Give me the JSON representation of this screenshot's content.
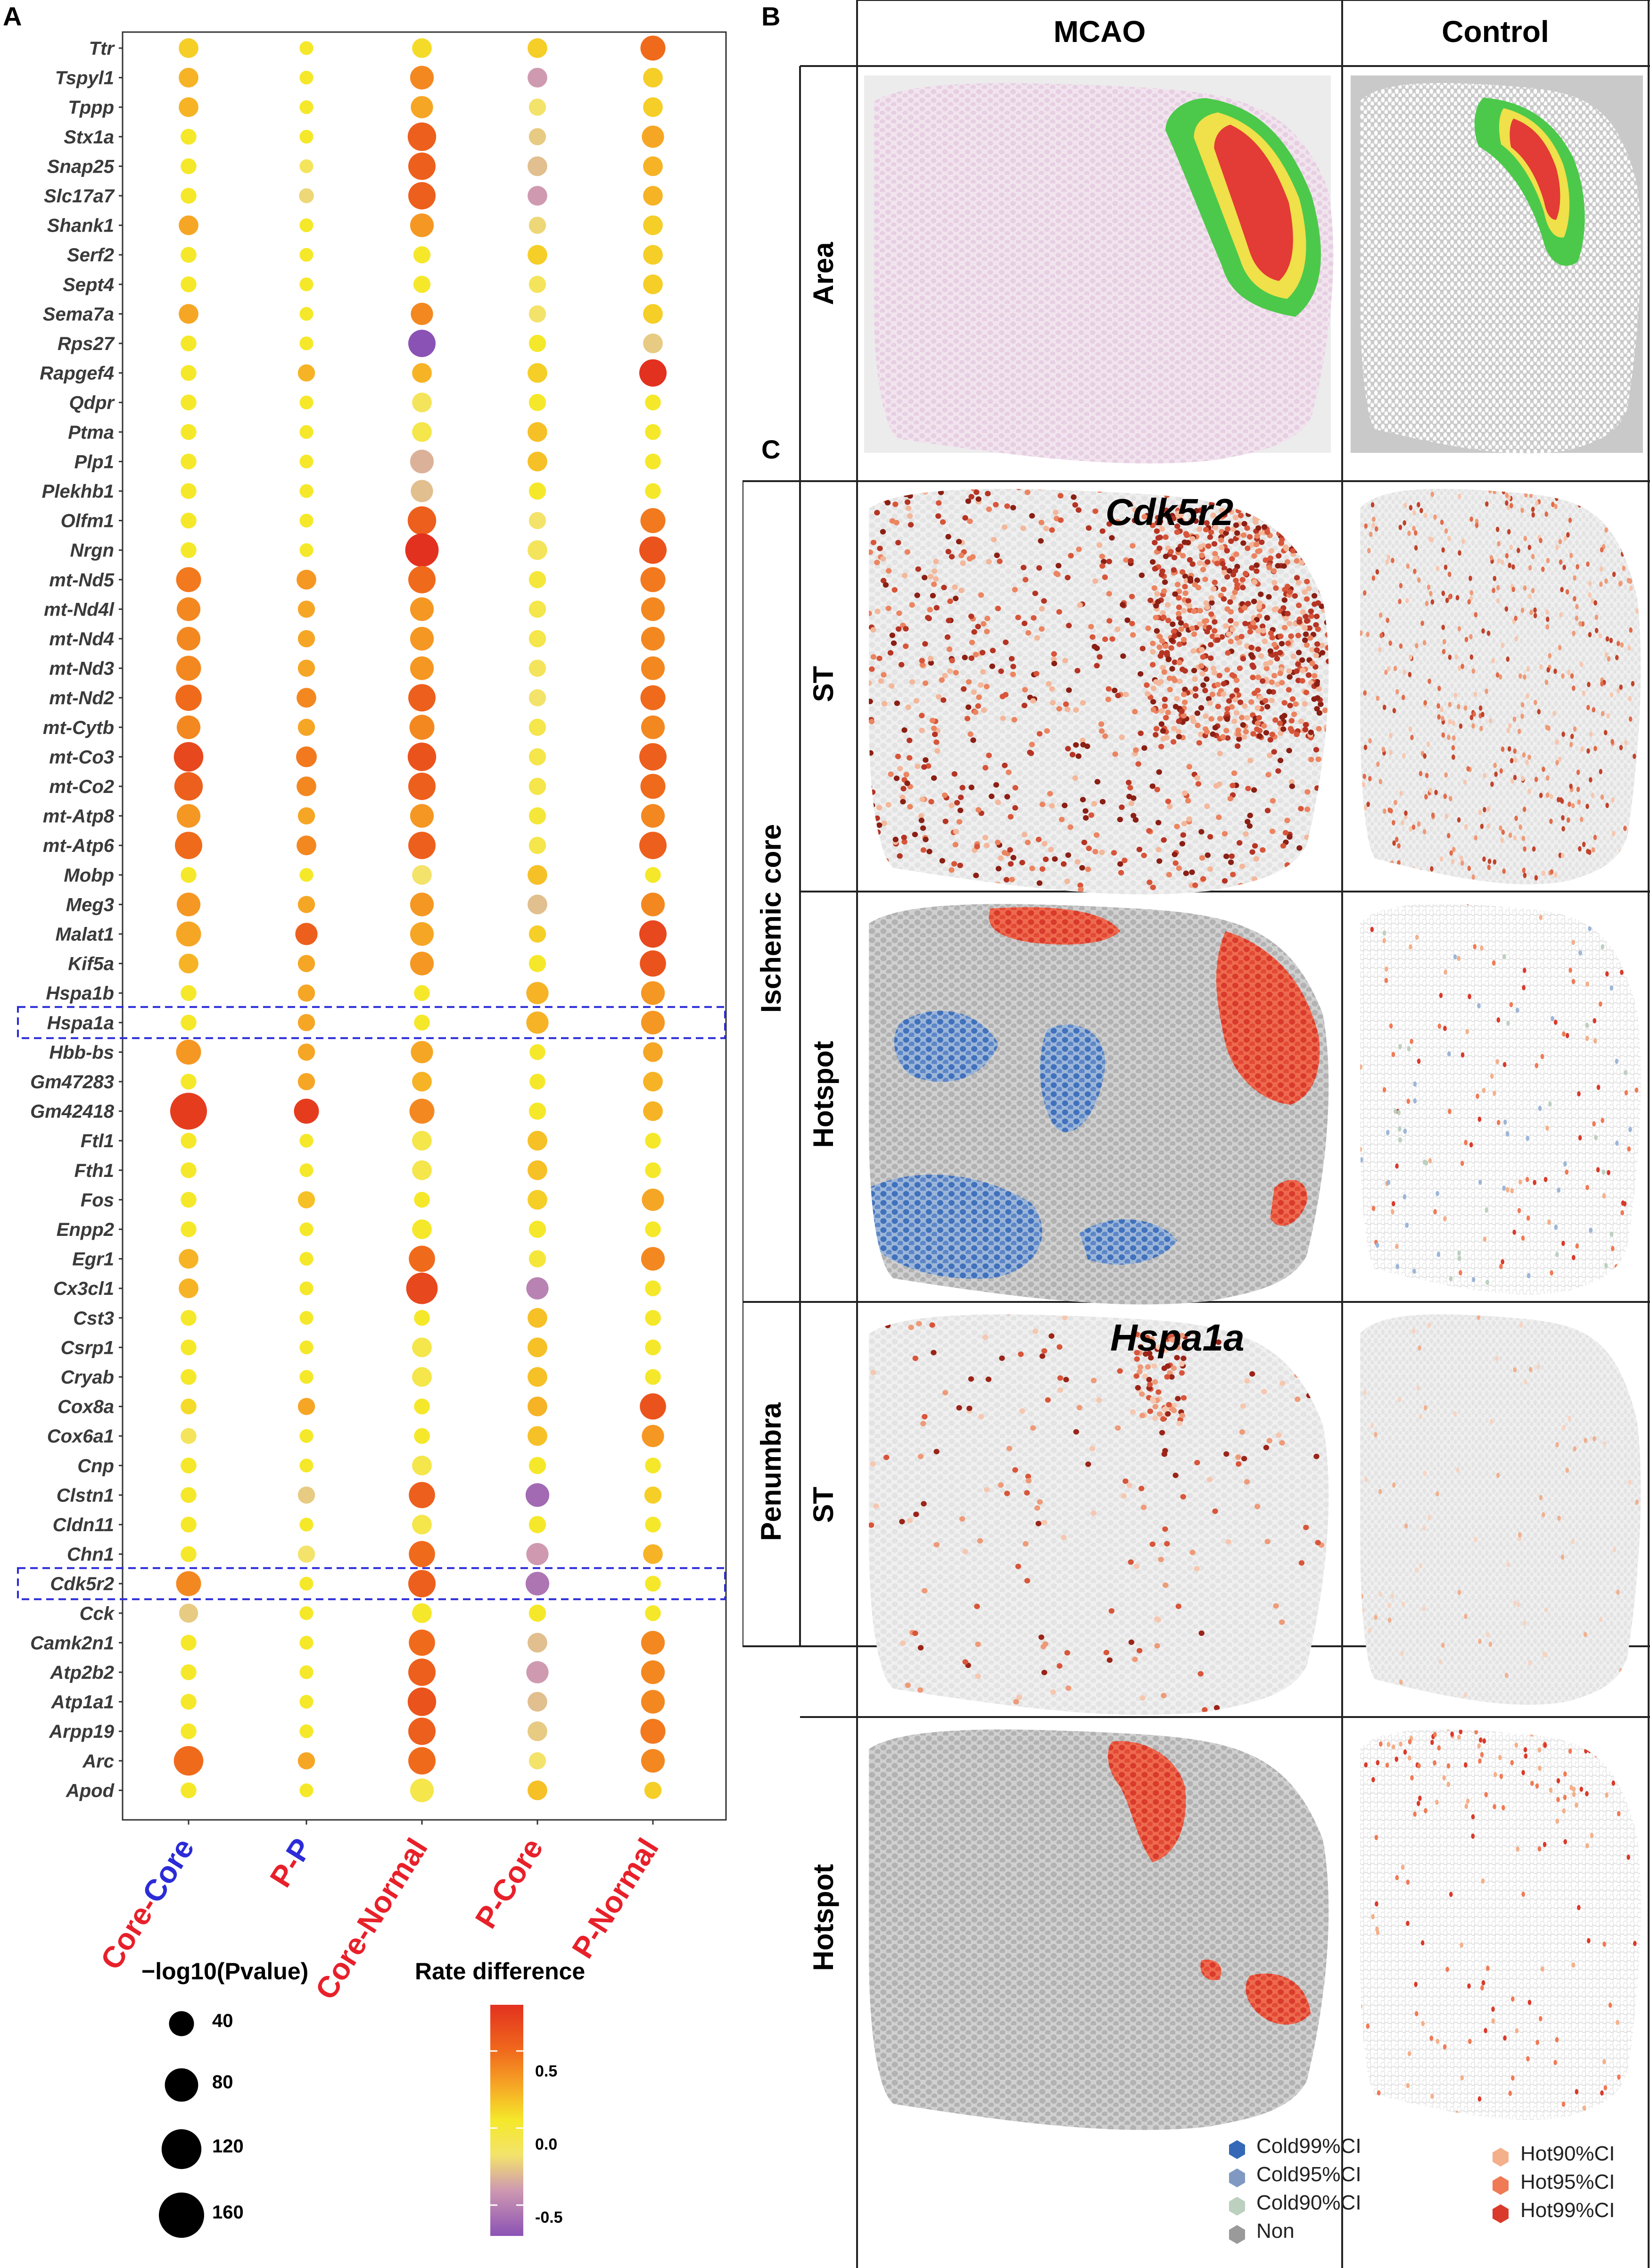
{
  "panel_labels": {
    "a": "A",
    "b": "B",
    "c": "C"
  },
  "chart_data": {
    "type": "scatter",
    "subtype": "dot-matrix",
    "genes": [
      "Ttr",
      "Tspyl1",
      "Tppp",
      "Stx1a",
      "Snap25",
      "Slc17a7",
      "Shank1",
      "Serf2",
      "Sept4",
      "Sema7a",
      "Rps27",
      "Rapgef4",
      "Qdpr",
      "Ptma",
      "Plp1",
      "Plekhb1",
      "Olfm1",
      "Nrgn",
      "mt-Nd5",
      "mt-Nd4l",
      "mt-Nd4",
      "mt-Nd3",
      "mt-Nd2",
      "mt-Cytb",
      "mt-Co3",
      "mt-Co2",
      "mt-Atp8",
      "mt-Atp6",
      "Mobp",
      "Meg3",
      "Malat1",
      "Kif5a",
      "Hspa1b",
      "Hspa1a",
      "Hbb-bs",
      "Gm47283",
      "Gm42418",
      "Ftl1",
      "Fth1",
      "Fos",
      "Enpp2",
      "Egr1",
      "Cx3cl1",
      "Cst3",
      "Csrp1",
      "Cryab",
      "Cox8a",
      "Cox6a1",
      "Cnp",
      "Clstn1",
      "Cldn11",
      "Chn1",
      "Cdk5r2",
      "Cck",
      "Camk2n1",
      "Atp2b2",
      "Atp1a1",
      "Arpp19",
      "Arc",
      "Apod"
    ],
    "comparisons": [
      {
        "first": "Core",
        "sep": "-",
        "second": "Core",
        "first_color": "#e8202a",
        "second_color": "#2b2bd8"
      },
      {
        "first": "P",
        "sep": "-",
        "second": "P",
        "first_color": "#e8202a",
        "second_color": "#2b2bd8"
      },
      {
        "first": "Core-Normal",
        "sep": "",
        "second": "",
        "first_color": "#e8202a",
        "second_color": "#e8202a"
      },
      {
        "first": "P-Core",
        "sep": "",
        "second": "",
        "first_color": "#e8202a",
        "second_color": "#e8202a"
      },
      {
        "first": "P-Normal",
        "sep": "",
        "second": "",
        "first_color": "#e8202a",
        "second_color": "#e8202a"
      }
    ],
    "size_metric": "-log10(Pvalue)",
    "color_metric": "Rate difference",
    "size_legend": [
      40,
      80,
      120,
      160
    ],
    "color_range": [
      -0.7,
      0.8
    ],
    "color_ticks": [
      0.5,
      0.0,
      -0.5
    ],
    "highlighted_genes": [
      "Hspa1a",
      "Cdk5r2"
    ],
    "neglog10p": [
      [
        22,
        22,
        22,
        12,
        12,
        12,
        22,
        12,
        12,
        22,
        12,
        12,
        12,
        12,
        12,
        12,
        12,
        12,
        40,
        35,
        35,
        40,
        45,
        35,
        60,
        55,
        35,
        50,
        12,
        35,
        40,
        22,
        12,
        12,
        40,
        12,
        100,
        12,
        12,
        12,
        12,
        22,
        22,
        12,
        12,
        12,
        12,
        12,
        12,
        12,
        12,
        12,
        40,
        20,
        12,
        12,
        12,
        12,
        60,
        12
      ],
      [
        8,
        8,
        8,
        8,
        8,
        10,
        8,
        8,
        8,
        8,
        8,
        15,
        8,
        8,
        8,
        8,
        8,
        8,
        22,
        15,
        15,
        15,
        22,
        15,
        25,
        22,
        15,
        22,
        8,
        15,
        30,
        15,
        15,
        15,
        15,
        15,
        40,
        8,
        8,
        15,
        8,
        8,
        8,
        8,
        8,
        8,
        15,
        8,
        8,
        15,
        8,
        15,
        8,
        8,
        8,
        8,
        8,
        8,
        15,
        8
      ],
      [
        22,
        35,
        30,
        55,
        50,
        50,
        35,
        15,
        15,
        30,
        50,
        22,
        22,
        22,
        35,
        30,
        55,
        80,
        50,
        35,
        35,
        35,
        50,
        40,
        55,
        50,
        35,
        50,
        22,
        35,
        35,
        35,
        12,
        12,
        30,
        22,
        40,
        22,
        22,
        12,
        22,
        45,
        70,
        12,
        22,
        22,
        12,
        12,
        22,
        45,
        22,
        45,
        50,
        22,
        45,
        50,
        55,
        50,
        50,
        35
      ],
      [
        22,
        22,
        15,
        15,
        22,
        22,
        15,
        22,
        15,
        15,
        15,
        22,
        15,
        22,
        22,
        15,
        15,
        22,
        15,
        15,
        15,
        15,
        15,
        15,
        15,
        15,
        15,
        15,
        22,
        22,
        15,
        15,
        30,
        30,
        12,
        12,
        15,
        22,
        22,
        22,
        15,
        15,
        30,
        22,
        22,
        22,
        22,
        22,
        15,
        35,
        15,
        30,
        35,
        15,
        22,
        30,
        22,
        22,
        15,
        22
      ],
      [
        40,
        22,
        22,
        30,
        22,
        22,
        22,
        22,
        22,
        22,
        22,
        50,
        12,
        12,
        12,
        12,
        40,
        50,
        40,
        35,
        35,
        35,
        40,
        35,
        50,
        40,
        35,
        50,
        12,
        35,
        50,
        45,
        35,
        35,
        22,
        22,
        22,
        12,
        12,
        30,
        12,
        35,
        12,
        12,
        12,
        12,
        45,
        30,
        12,
        15,
        12,
        22,
        12,
        12,
        35,
        35,
        35,
        40,
        35,
        15
      ]
    ],
    "rate_diff": [
      [
        0.2,
        0.3,
        0.3,
        0.1,
        0.1,
        0.1,
        0.35,
        0.1,
        0.1,
        0.35,
        0.1,
        0.1,
        0.1,
        0.1,
        0.1,
        0.1,
        0.1,
        0.1,
        0.5,
        0.45,
        0.45,
        0.45,
        0.55,
        0.45,
        0.7,
        0.6,
        0.4,
        0.55,
        0.1,
        0.4,
        0.35,
        0.3,
        0.1,
        0.1,
        0.4,
        0.1,
        0.75,
        0.1,
        0.1,
        0.1,
        0.1,
        0.3,
        0.3,
        0.1,
        0.1,
        0.1,
        0.15,
        -0.05,
        0.1,
        0.1,
        0.1,
        0.1,
        0.45,
        -0.2,
        0.1,
        0.1,
        0.1,
        0.1,
        0.55,
        0.1
      ],
      [
        0.1,
        0.1,
        0.1,
        0.1,
        -0.05,
        -0.15,
        0.1,
        0.1,
        0.1,
        0.1,
        0.1,
        0.3,
        0.1,
        0.1,
        0.1,
        0.1,
        0.1,
        0.1,
        0.4,
        0.35,
        0.35,
        0.35,
        0.45,
        0.35,
        0.5,
        0.45,
        0.35,
        0.45,
        0.1,
        0.35,
        0.6,
        0.35,
        0.35,
        0.35,
        0.35,
        0.35,
        0.75,
        0.1,
        0.1,
        0.25,
        0.1,
        0.1,
        0.1,
        0.1,
        0.1,
        0.1,
        0.35,
        0.1,
        0.1,
        -0.2,
        0.1,
        -0.1,
        0.1,
        0.1,
        0.1,
        0.1,
        0.1,
        0.1,
        0.35,
        0.1
      ],
      [
        0.15,
        0.45,
        0.35,
        0.6,
        0.6,
        0.6,
        0.4,
        0.1,
        0.1,
        0.45,
        -0.7,
        0.3,
        -0.05,
        0.0,
        -0.3,
        -0.25,
        0.6,
        0.8,
        0.55,
        0.4,
        0.4,
        0.4,
        0.6,
        0.45,
        0.65,
        0.6,
        0.4,
        0.6,
        -0.1,
        0.4,
        0.35,
        0.4,
        0.1,
        0.1,
        0.35,
        0.3,
        0.45,
        0.0,
        0.0,
        0.1,
        0.1,
        0.55,
        0.7,
        0.1,
        0.0,
        0.0,
        0.1,
        0.1,
        0.0,
        0.6,
        0.0,
        0.55,
        0.6,
        0.1,
        0.55,
        0.6,
        0.65,
        0.6,
        0.55,
        0.0
      ],
      [
        0.2,
        -0.4,
        -0.1,
        -0.2,
        -0.25,
        -0.4,
        -0.15,
        0.2,
        -0.05,
        -0.1,
        0.1,
        0.2,
        0.1,
        0.25,
        0.25,
        0.1,
        -0.1,
        -0.05,
        0.05,
        0.0,
        0.0,
        -0.05,
        -0.1,
        0.0,
        0.0,
        0.0,
        0.05,
        0.0,
        0.25,
        -0.25,
        0.2,
        0.1,
        0.3,
        0.3,
        0.1,
        0.1,
        0.1,
        0.25,
        0.25,
        0.2,
        0.1,
        0.05,
        -0.5,
        0.25,
        0.25,
        0.25,
        0.3,
        0.25,
        0.1,
        -0.6,
        0.1,
        -0.4,
        -0.55,
        0.1,
        -0.25,
        -0.4,
        -0.25,
        -0.2,
        -0.1,
        0.25
      ],
      [
        0.55,
        0.2,
        0.2,
        0.35,
        0.3,
        0.3,
        0.2,
        0.2,
        0.2,
        0.2,
        -0.2,
        0.8,
        0.1,
        0.1,
        0.1,
        0.1,
        0.5,
        0.65,
        0.5,
        0.45,
        0.45,
        0.45,
        0.55,
        0.45,
        0.6,
        0.55,
        0.45,
        0.6,
        0.1,
        0.45,
        0.7,
        0.65,
        0.4,
        0.4,
        0.35,
        0.3,
        0.3,
        0.1,
        0.1,
        0.35,
        0.1,
        0.45,
        0.1,
        0.1,
        0.1,
        0.1,
        0.65,
        0.4,
        0.1,
        0.2,
        0.1,
        0.3,
        0.1,
        0.1,
        0.45,
        0.45,
        0.45,
        0.5,
        0.45,
        0.2
      ]
    ]
  },
  "legend": {
    "size_title": "−log10(Pvalue)",
    "color_title": "Rate difference",
    "size_labels": [
      "40",
      "80",
      "120",
      "160"
    ],
    "color_labels": [
      "0.5",
      "0.0",
      "-0.5"
    ]
  },
  "grid": {
    "col_headers": [
      "MCAO",
      "Control"
    ],
    "row_area": "Area",
    "row_st": "ST",
    "row_hotspot": "Hotspot",
    "section_core": "Ischemic core",
    "section_penumbra": "Penumbra",
    "gene_core": "Cdk5r2",
    "gene_penumbra": "Hspa1a"
  },
  "hotspot_legend": {
    "cold": [
      "Cold99%CI",
      "Cold95%CI",
      "Cold90%CI",
      "Non"
    ],
    "hot": [
      "Hot90%CI",
      "Hot95%CI",
      "Hot99%CI"
    ],
    "cold_colors": [
      "#3569b8",
      "#7f99c2",
      "#bcd0bf",
      "#9a9a9a"
    ],
    "hot_colors": [
      "#f4b08a",
      "#f07a55",
      "#d93a2b"
    ]
  }
}
